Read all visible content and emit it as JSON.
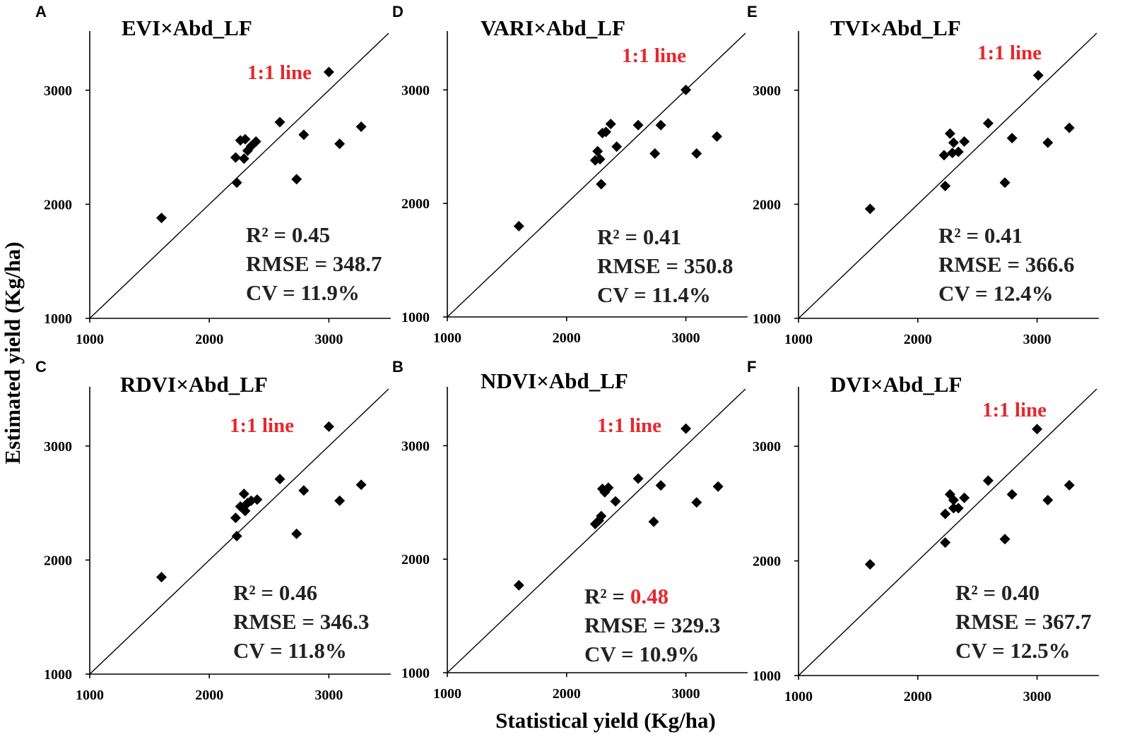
{
  "figure": {
    "x_axis_title": "Statistical yield (Kg/ha)",
    "y_axis_title": "Estimated yield (Kg/ha)"
  },
  "colors": {
    "highlight": "#e8262b",
    "marker": "#000000",
    "axis": "#000000"
  },
  "chart_data": [
    {
      "panel": "A",
      "type": "scatter",
      "title": "EVI×Abd_LF",
      "line_label": "1:1 line",
      "xlim": [
        1000,
        3500
      ],
      "ylim": [
        1000,
        3500
      ],
      "xticks": [
        1000,
        2000,
        3000
      ],
      "yticks": [
        1000,
        2000,
        3000
      ],
      "stats": {
        "r2_prefix": "R² = ",
        "r2_value": "0.45",
        "r2_highlight": false,
        "rmse": "RMSE = 348.7",
        "cv": "CV = 11.9%"
      },
      "points": [
        [
          1600,
          1880
        ],
        [
          2230,
          2190
        ],
        [
          2220,
          2410
        ],
        [
          2260,
          2560
        ],
        [
          2300,
          2570
        ],
        [
          2290,
          2400
        ],
        [
          2320,
          2470
        ],
        [
          2350,
          2510
        ],
        [
          2390,
          2550
        ],
        [
          2590,
          2720
        ],
        [
          2730,
          2220
        ],
        [
          2790,
          2610
        ],
        [
          3000,
          3160
        ],
        [
          3090,
          2530
        ],
        [
          3270,
          2680
        ]
      ]
    },
    {
      "panel": "D",
      "type": "scatter",
      "title": "VARI×Abd_LF",
      "line_label": "1:1 line",
      "xlim": [
        1000,
        3500
      ],
      "ylim": [
        1000,
        3500
      ],
      "xticks": [
        1000,
        2000,
        3000
      ],
      "yticks": [
        1000,
        2000,
        3000
      ],
      "stats": {
        "r2_prefix": "R² = ",
        "r2_value": "0.41",
        "r2_highlight": false,
        "rmse": "RMSE = 350.8",
        "cv": "CV = 11.4%"
      },
      "points": [
        [
          1600,
          1800
        ],
        [
          2240,
          2380
        ],
        [
          2260,
          2460
        ],
        [
          2280,
          2390
        ],
        [
          2290,
          2170
        ],
        [
          2300,
          2620
        ],
        [
          2330,
          2630
        ],
        [
          2370,
          2700
        ],
        [
          2420,
          2500
        ],
        [
          2600,
          2690
        ],
        [
          2740,
          2440
        ],
        [
          2790,
          2690
        ],
        [
          3000,
          3000
        ],
        [
          3090,
          2440
        ],
        [
          3260,
          2590
        ]
      ]
    },
    {
      "panel": "E",
      "type": "scatter",
      "title": "TVI×Abd_LF",
      "line_label": "1:1 line",
      "xlim": [
        1000,
        3500
      ],
      "ylim": [
        1000,
        3500
      ],
      "xticks": [
        1000,
        2000,
        3000
      ],
      "yticks": [
        1000,
        2000,
        3000
      ],
      "stats": {
        "r2_prefix": "R² = ",
        "r2_value": "0.41",
        "r2_highlight": false,
        "rmse": "RMSE = 366.6",
        "cv": "CV = 12.4%"
      },
      "points": [
        [
          1600,
          1960
        ],
        [
          2230,
          2160
        ],
        [
          2220,
          2430
        ],
        [
          2270,
          2620
        ],
        [
          2300,
          2540
        ],
        [
          2290,
          2450
        ],
        [
          2340,
          2460
        ],
        [
          2390,
          2550
        ],
        [
          2590,
          2710
        ],
        [
          2730,
          2190
        ],
        [
          2790,
          2580
        ],
        [
          3010,
          3130
        ],
        [
          3090,
          2540
        ],
        [
          3270,
          2670
        ]
      ]
    },
    {
      "panel": "C",
      "type": "scatter",
      "title": "RDVI×Abd_LF",
      "line_label": "1:1 line",
      "xlim": [
        1000,
        3500
      ],
      "ylim": [
        1000,
        3500
      ],
      "xticks": [
        1000,
        2000,
        3000
      ],
      "yticks": [
        1000,
        2000,
        3000
      ],
      "stats": {
        "r2_prefix": "R² = ",
        "r2_value": "0.46",
        "r2_highlight": false,
        "rmse": "RMSE = 346.3",
        "cv": "CV = 11.8%"
      },
      "points": [
        [
          1600,
          1850
        ],
        [
          2230,
          2210
        ],
        [
          2220,
          2370
        ],
        [
          2260,
          2470
        ],
        [
          2290,
          2580
        ],
        [
          2300,
          2430
        ],
        [
          2320,
          2500
        ],
        [
          2350,
          2520
        ],
        [
          2400,
          2530
        ],
        [
          2590,
          2710
        ],
        [
          2730,
          2230
        ],
        [
          2790,
          2610
        ],
        [
          3000,
          3170
        ],
        [
          3090,
          2520
        ],
        [
          3270,
          2660
        ]
      ]
    },
    {
      "panel": "B",
      "type": "scatter",
      "title": "NDVI×Abd_LF",
      "line_label": "1:1 line",
      "xlim": [
        1000,
        3500
      ],
      "ylim": [
        1000,
        3500
      ],
      "xticks": [
        1000,
        2000,
        3000
      ],
      "yticks": [
        1000,
        2000,
        3000
      ],
      "stats": {
        "r2_prefix": "R² = ",
        "r2_value": "0.48",
        "r2_highlight": true,
        "rmse": "RMSE = 329.3",
        "cv": "CV = 10.9%"
      },
      "points": [
        [
          1600,
          1770
        ],
        [
          2240,
          2310
        ],
        [
          2270,
          2340
        ],
        [
          2290,
          2380
        ],
        [
          2300,
          2620
        ],
        [
          2320,
          2590
        ],
        [
          2350,
          2630
        ],
        [
          2410,
          2510
        ],
        [
          2600,
          2710
        ],
        [
          2730,
          2330
        ],
        [
          2790,
          2650
        ],
        [
          3000,
          3150
        ],
        [
          3090,
          2500
        ],
        [
          3270,
          2640
        ]
      ]
    },
    {
      "panel": "F",
      "type": "scatter",
      "title": "DVI×Abd_LF",
      "line_label": "1:1 line",
      "xlim": [
        1000,
        3500
      ],
      "ylim": [
        1000,
        3500
      ],
      "xticks": [
        1000,
        2000,
        3000
      ],
      "yticks": [
        1000,
        2000,
        3000
      ],
      "stats": {
        "r2_prefix": "R² = ",
        "r2_value": "0.40",
        "r2_highlight": false,
        "rmse": "RMSE = 367.7",
        "cv": "CV = 12.5%"
      },
      "points": [
        [
          1600,
          1970
        ],
        [
          2230,
          2160
        ],
        [
          2230,
          2410
        ],
        [
          2270,
          2580
        ],
        [
          2300,
          2530
        ],
        [
          2300,
          2460
        ],
        [
          2340,
          2460
        ],
        [
          2390,
          2550
        ],
        [
          2590,
          2700
        ],
        [
          2730,
          2190
        ],
        [
          2790,
          2580
        ],
        [
          3000,
          3150
        ],
        [
          3090,
          2530
        ],
        [
          3270,
          2660
        ]
      ]
    }
  ]
}
